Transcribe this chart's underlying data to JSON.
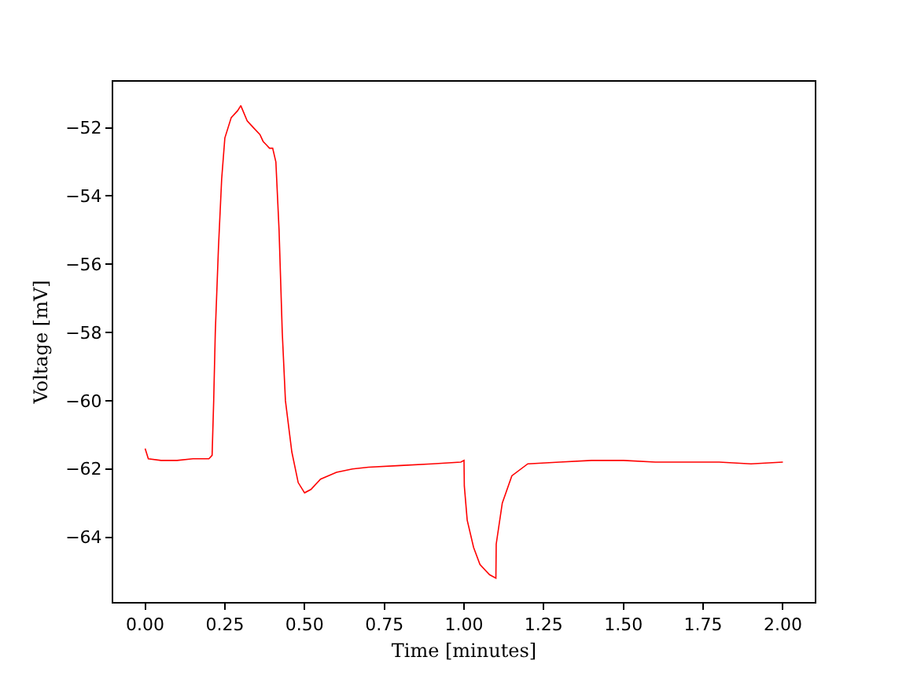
{
  "chart_data": {
    "type": "line",
    "xlabel": "Time [minutes]",
    "ylabel": "Voltage [mV]",
    "x": [
      0,
      0.01,
      0.05,
      0.1,
      0.15,
      0.2,
      0.21,
      0.215,
      0.22,
      0.23,
      0.24,
      0.25,
      0.27,
      0.29,
      0.3,
      0.32,
      0.34,
      0.36,
      0.37,
      0.38,
      0.39,
      0.4,
      0.41,
      0.42,
      0.43,
      0.44,
      0.46,
      0.48,
      0.5,
      0.52,
      0.55,
      0.6,
      0.65,
      0.7,
      0.8,
      0.9,
      0.99,
      1.0,
      1.001,
      1.01,
      1.03,
      1.05,
      1.08,
      1.1,
      1.101,
      1.12,
      1.15,
      1.2,
      1.3,
      1.4,
      1.5,
      1.6,
      1.7,
      1.8,
      1.9,
      2.0
    ],
    "series": [
      {
        "color": "#ff0000",
        "values": [
          -61.4,
          -61.7,
          -61.75,
          -61.75,
          -61.7,
          -61.7,
          -61.6,
          -60,
          -58,
          -55.5,
          -53.5,
          -52.3,
          -51.7,
          -51.5,
          -51.35,
          -51.8,
          -52.0,
          -52.2,
          -52.4,
          -52.5,
          -52.6,
          -52.6,
          -53,
          -55,
          -58,
          -60,
          -61.5,
          -62.4,
          -62.7,
          -62.6,
          -62.3,
          -62.1,
          -62.0,
          -61.95,
          -61.9,
          -61.85,
          -61.8,
          -61.75,
          -62.5,
          -63.5,
          -64.3,
          -64.8,
          -65.1,
          -65.2,
          -64.2,
          -63.0,
          -62.2,
          -61.85,
          -61.8,
          -61.75,
          -61.75,
          -61.8,
          -61.8,
          -61.8,
          -61.85,
          -61.8
        ]
      }
    ],
    "xlim": [
      -0.1,
      2.1
    ],
    "ylim": [
      -65.9,
      -50.65
    ],
    "xticks": [
      {
        "value": 0,
        "label": "0.00"
      },
      {
        "value": 0.25,
        "label": "0.25"
      },
      {
        "value": 0.5,
        "label": "0.50"
      },
      {
        "value": 0.75,
        "label": "0.75"
      },
      {
        "value": 1,
        "label": "1.00"
      },
      {
        "value": 1.25,
        "label": "1.25"
      },
      {
        "value": 1.5,
        "label": "1.50"
      },
      {
        "value": 1.75,
        "label": "1.75"
      },
      {
        "value": 2,
        "label": "2.00"
      }
    ],
    "yticks": [
      {
        "value": -64,
        "label": "−64"
      },
      {
        "value": -62,
        "label": "−62"
      },
      {
        "value": -60,
        "label": "−60"
      },
      {
        "value": -58,
        "label": "−58"
      },
      {
        "value": -56,
        "label": "−56"
      },
      {
        "value": -54,
        "label": "−54"
      },
      {
        "value": -52,
        "label": "−52"
      }
    ],
    "grid": false,
    "legend": false,
    "marker": "none",
    "line_style": "solid"
  }
}
